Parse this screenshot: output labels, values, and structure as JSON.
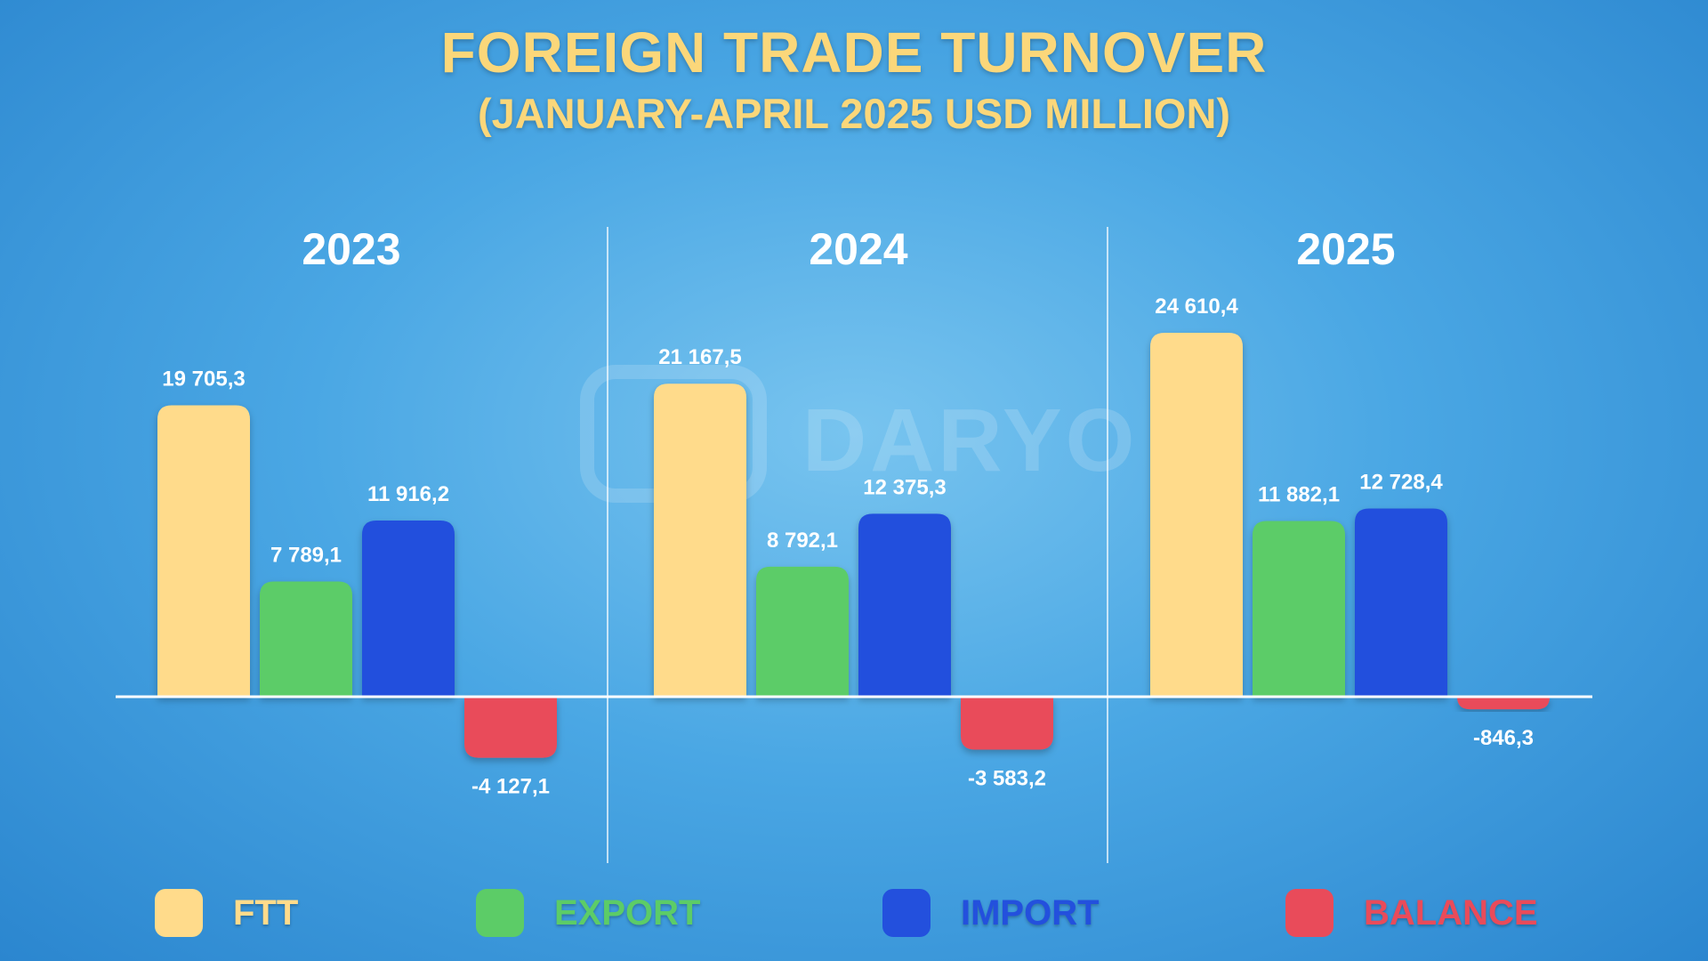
{
  "title": "FOREIGN TRADE TURNOVER",
  "subtitle": "(JANUARY-APRIL 2025 USD MILLION)",
  "watermark": "DARYO",
  "chart_data": {
    "type": "bar",
    "title": "FOREIGN TRADE TURNOVER",
    "subtitle": "(JANUARY-APRIL 2025 USD MILLION)",
    "categories": [
      "2023",
      "2024",
      "2025"
    ],
    "series": [
      {
        "name": "FTT",
        "values": [
          19705.3,
          21167.5,
          24610.4
        ],
        "labels": [
          "19 705,3",
          "21 167,5",
          "24 610,4"
        ],
        "color": "#ffdb8b"
      },
      {
        "name": "EXPORT",
        "values": [
          7789.1,
          8792.1,
          11882.1
        ],
        "labels": [
          "7 789,1",
          "8 792,1",
          "11 882,1"
        ],
        "color": "#5ccc67"
      },
      {
        "name": "IMPORT",
        "values": [
          11916.2,
          12375.3,
          12728.4
        ],
        "labels": [
          "11 916,2",
          "12 375,3",
          "12 728,4"
        ],
        "color": "#2350dd"
      },
      {
        "name": "BALANCE",
        "values": [
          -4127.1,
          -3583.2,
          -846.3
        ],
        "labels": [
          "-4 127,1",
          "-3 583,2",
          "-846,3"
        ],
        "color": "#e94b5a"
      }
    ],
    "legend": "bottom",
    "grid": false
  }
}
